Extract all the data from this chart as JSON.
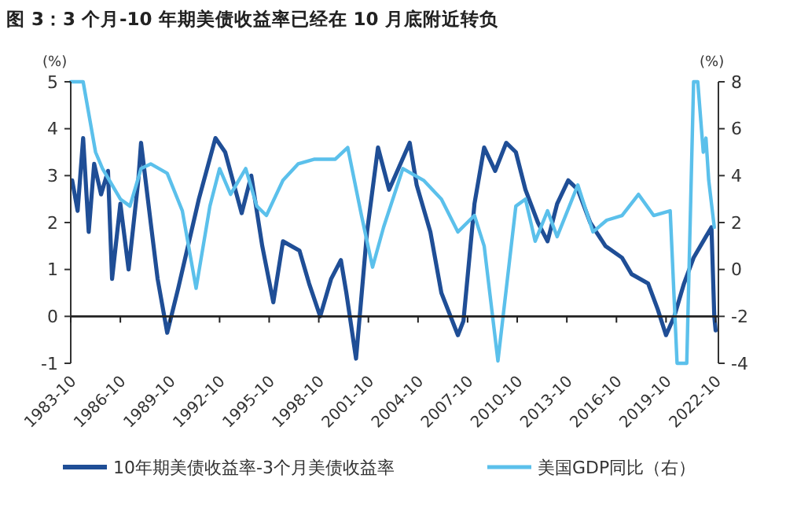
{
  "chart_data": {
    "type": "line",
    "title": "图 3：3 个月-10 年期美债收益率已经在 10 月底附近转负",
    "ylabel": "(%)",
    "y2label": "(%)",
    "xlim": [
      "1983-10",
      "2022-12"
    ],
    "xticks": [
      "1983-10",
      "1986-10",
      "1989-10",
      "1992-10",
      "1995-10",
      "1998-10",
      "2001-10",
      "2004-10",
      "2007-10",
      "2010-10",
      "2013-10",
      "2016-10",
      "2019-10",
      "2022-10"
    ],
    "ylim": [
      -1,
      5
    ],
    "yticks": [
      -1,
      0,
      1,
      2,
      3,
      4,
      5
    ],
    "y2lim": [
      -4,
      8
    ],
    "y2ticks": [
      -4,
      -2,
      0,
      2,
      4,
      6,
      8
    ],
    "legend": "bottom",
    "line_style": "solid",
    "marker": "none",
    "series": [
      {
        "name": "10年期美债收益率-3个月美债收益率",
        "color": "#1f4e96",
        "x": [
          "1983-11",
          "1984-03",
          "1984-07",
          "1984-11",
          "1985-03",
          "1985-08",
          "1986-01",
          "1986-04",
          "1986-10",
          "1987-04",
          "1987-11",
          "1988-01",
          "1988-08",
          "1989-01",
          "1989-08",
          "1990-04",
          "1991-07",
          "1992-07",
          "1993-02",
          "1994-02",
          "1994-09",
          "1995-05",
          "1996-01",
          "1996-08",
          "1997-08",
          "1998-03",
          "1998-11",
          "1999-07",
          "2000-02",
          "2000-06",
          "2001-01",
          "2001-09",
          "2002-05",
          "2003-01",
          "2004-04",
          "2004-09",
          "2005-07",
          "2006-03",
          "2007-03",
          "2007-07",
          "2008-03",
          "2008-10",
          "2009-06",
          "2010-02",
          "2010-09",
          "2011-04",
          "2012-01",
          "2012-08",
          "2013-03",
          "2013-11",
          "2014-06",
          "2015-03",
          "2016-02",
          "2017-02",
          "2017-09",
          "2018-09",
          "2019-04",
          "2019-10",
          "2020-04",
          "2020-11",
          "2021-06",
          "2022-03",
          "2022-07",
          "2022-09",
          "2022-10"
        ],
        "values": [
          2.9,
          2.25,
          3.8,
          1.8,
          3.25,
          2.6,
          3.1,
          0.8,
          2.4,
          1.0,
          2.9,
          3.7,
          2.0,
          0.8,
          -0.35,
          0.6,
          2.5,
          3.8,
          3.5,
          2.2,
          3.0,
          1.5,
          0.3,
          1.6,
          1.4,
          0.7,
          0.0,
          0.8,
          1.2,
          0.5,
          -0.9,
          1.8,
          3.6,
          2.7,
          3.7,
          2.8,
          1.8,
          0.5,
          -0.4,
          -0.1,
          2.4,
          3.6,
          3.1,
          3.7,
          3.5,
          2.7,
          2.0,
          1.6,
          2.4,
          2.9,
          2.7,
          2.0,
          1.5,
          1.25,
          0.9,
          0.7,
          0.15,
          -0.4,
          0.0,
          0.7,
          1.25,
          1.7,
          1.9,
          0.0,
          -0.3
        ]
      },
      {
        "name": "美国GDP同比（右）",
        "color": "#5bc0eb",
        "axis": "y2",
        "x": [
          "1983-10",
          "1984-07",
          "1985-04",
          "1985-09",
          "1986-10",
          "1987-05",
          "1988-01",
          "1988-08",
          "1989-08",
          "1990-07",
          "1991-05",
          "1992-03",
          "1992-10",
          "1993-06",
          "1994-05",
          "1995-01",
          "1995-08",
          "1996-08",
          "1997-07",
          "1998-07",
          "1999-10",
          "2000-07",
          "2001-05",
          "2002-01",
          "2002-09",
          "2003-11",
          "2005-02",
          "2006-03",
          "2007-03",
          "2008-03",
          "2008-10",
          "2009-08",
          "2010-09",
          "2011-04",
          "2011-11",
          "2012-08",
          "2013-03",
          "2014-06",
          "2015-05",
          "2016-03",
          "2017-02",
          "2018-02",
          "2019-01",
          "2020-01",
          "2020-06",
          "2021-01",
          "2021-06",
          "2021-09",
          "2022-01",
          "2022-03",
          "2022-05",
          "2022-09"
        ],
        "values": [
          8,
          8,
          5.0,
          4.3,
          3.0,
          2.7,
          4.3,
          4.5,
          4.1,
          2.5,
          -0.8,
          2.7,
          4.3,
          3.2,
          4.3,
          2.7,
          2.3,
          3.8,
          4.5,
          4.7,
          4.7,
          5.2,
          2.3,
          0.1,
          1.8,
          4.3,
          3.8,
          3.0,
          1.6,
          2.3,
          1.0,
          -3.9,
          2.7,
          3.0,
          1.2,
          2.5,
          1.4,
          3.6,
          1.6,
          2.1,
          2.3,
          3.2,
          2.3,
          2.5,
          -4,
          -4,
          8,
          8,
          5.0,
          5.6,
          3.8,
          1.8
        ]
      }
    ]
  }
}
